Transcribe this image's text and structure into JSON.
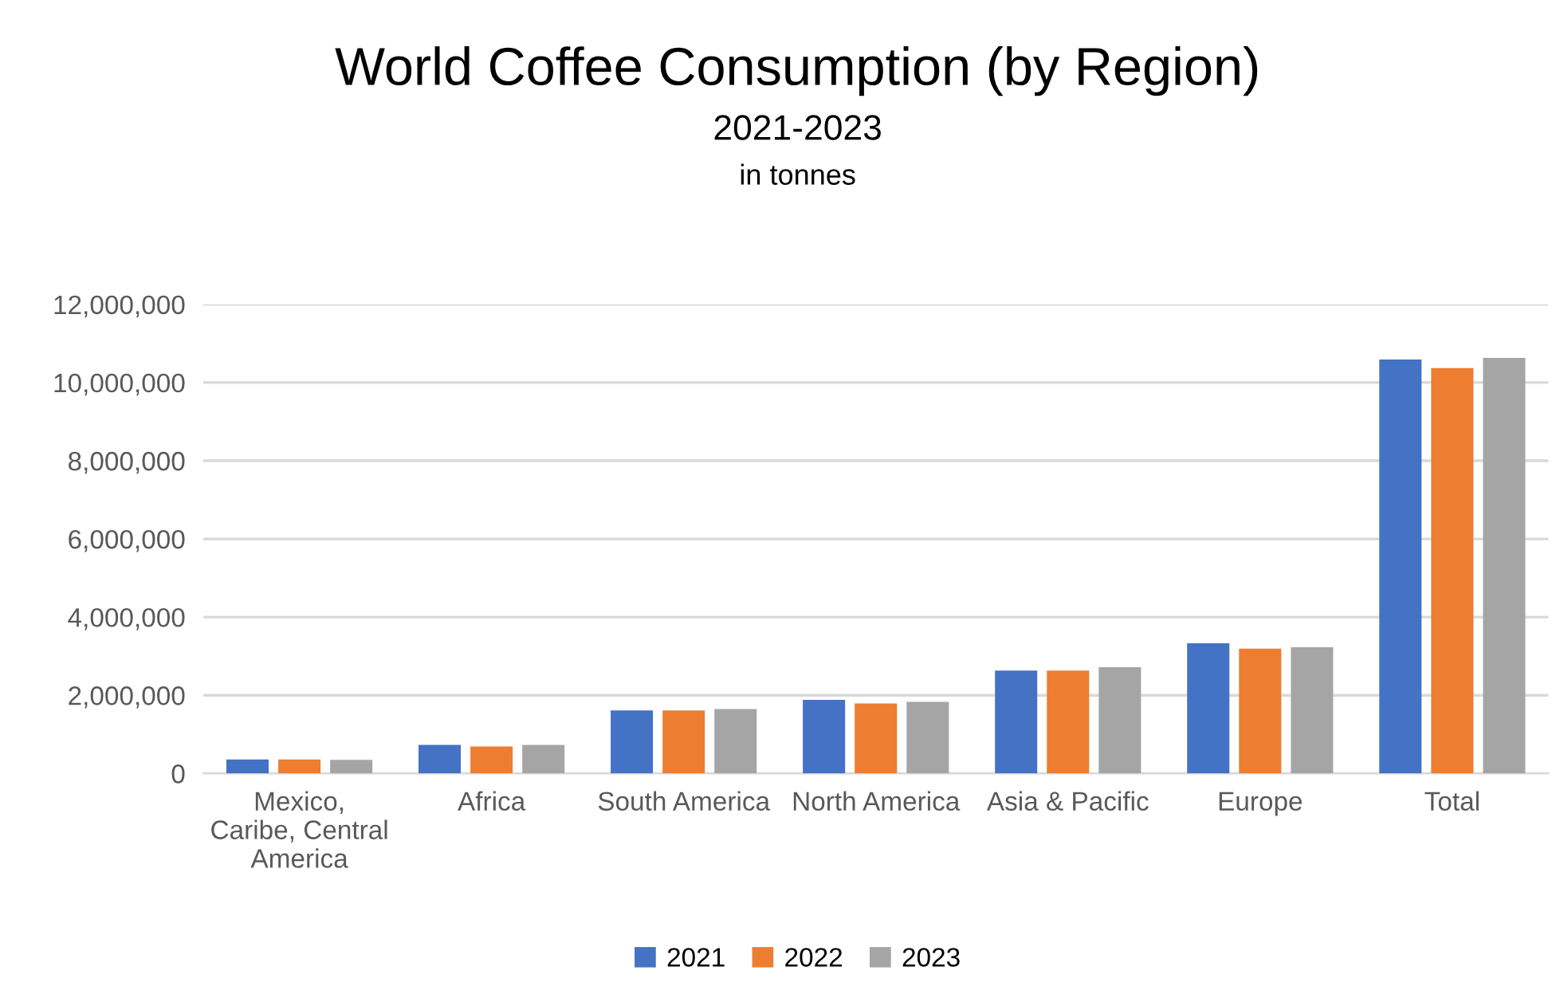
{
  "chart_data": {
    "type": "bar",
    "title": "World Coffee Consumption (by Region)",
    "subtitle": "2021-2023",
    "annotations": [
      "in tonnes"
    ],
    "categories": [
      "Mexico,\nCaribe, Central\nAmerica",
      "Africa",
      "South America",
      "North America",
      "Asia & Pacific",
      "Europe",
      "Total"
    ],
    "series": [
      {
        "name": "2021",
        "color": "#4472c4",
        "values": [
          360000,
          730000,
          1610000,
          1880000,
          2630000,
          3330000,
          10590000
        ]
      },
      {
        "name": "2022",
        "color": "#ed7d31",
        "values": [
          360000,
          690000,
          1610000,
          1790000,
          2630000,
          3190000,
          10370000
        ]
      },
      {
        "name": "2023",
        "color": "#a5a5a5",
        "values": [
          350000,
          730000,
          1650000,
          1830000,
          2720000,
          3230000,
          10630000
        ]
      }
    ],
    "ylim": [
      0,
      12000000
    ],
    "yticks": [
      {
        "value": 0,
        "label": "0"
      },
      {
        "value": 2000000,
        "label": "2,000,000"
      },
      {
        "value": 4000000,
        "label": "4,000,000"
      },
      {
        "value": 6000000,
        "label": "6,000,000"
      },
      {
        "value": 8000000,
        "label": "8,000,000"
      },
      {
        "value": 10000000,
        "label": "10,000,000"
      },
      {
        "value": 12000000,
        "label": "12,000,000"
      }
    ],
    "grid": "y",
    "legend": "bottom"
  }
}
